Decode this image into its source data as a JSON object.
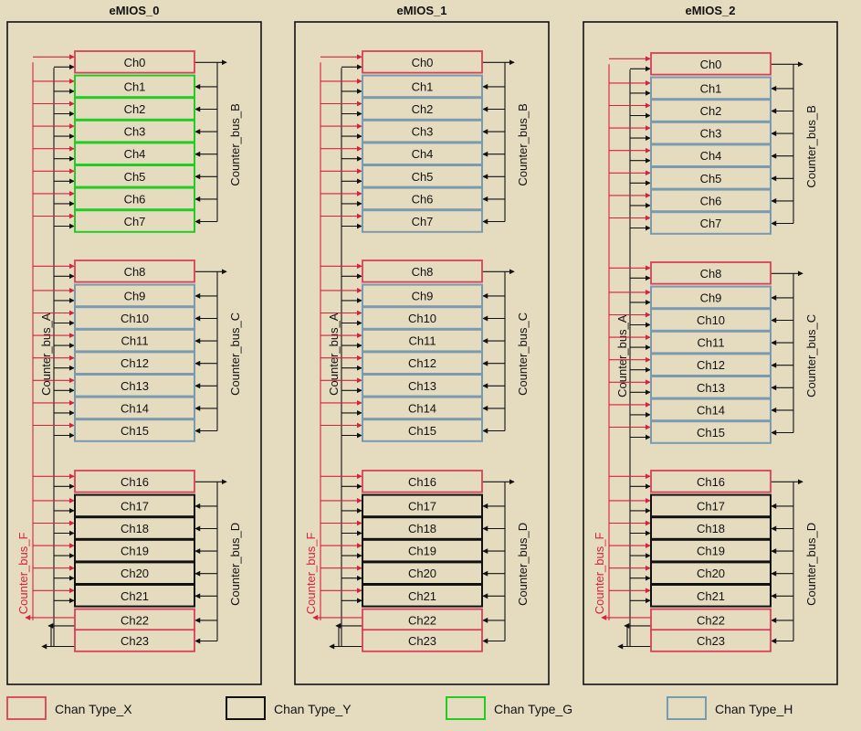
{
  "modules": [
    {
      "title": "eMIOS_0",
      "channels": [
        {
          "label": "Ch0",
          "type": "X"
        },
        {
          "label": "Ch1",
          "type": "G"
        },
        {
          "label": "Ch2",
          "type": "G"
        },
        {
          "label": "Ch3",
          "type": "G"
        },
        {
          "label": "Ch4",
          "type": "G"
        },
        {
          "label": "Ch5",
          "type": "G"
        },
        {
          "label": "Ch6",
          "type": "G"
        },
        {
          "label": "Ch7",
          "type": "G"
        },
        {
          "label": "Ch8",
          "type": "X"
        },
        {
          "label": "Ch9",
          "type": "H"
        },
        {
          "label": "Ch10",
          "type": "H"
        },
        {
          "label": "Ch11",
          "type": "H"
        },
        {
          "label": "Ch12",
          "type": "H"
        },
        {
          "label": "Ch13",
          "type": "H"
        },
        {
          "label": "Ch14",
          "type": "H"
        },
        {
          "label": "Ch15",
          "type": "H"
        },
        {
          "label": "Ch16",
          "type": "X"
        },
        {
          "label": "Ch17",
          "type": "Y"
        },
        {
          "label": "Ch18",
          "type": "Y"
        },
        {
          "label": "Ch19",
          "type": "Y"
        },
        {
          "label": "Ch20",
          "type": "Y"
        },
        {
          "label": "Ch21",
          "type": "Y"
        },
        {
          "label": "Ch22",
          "type": "X"
        },
        {
          "label": "Ch23",
          "type": "X"
        }
      ]
    },
    {
      "title": "eMIOS_1",
      "channels": [
        {
          "label": "Ch0",
          "type": "X"
        },
        {
          "label": "Ch1",
          "type": "H"
        },
        {
          "label": "Ch2",
          "type": "H"
        },
        {
          "label": "Ch3",
          "type": "H"
        },
        {
          "label": "Ch4",
          "type": "H"
        },
        {
          "label": "Ch5",
          "type": "H"
        },
        {
          "label": "Ch6",
          "type": "H"
        },
        {
          "label": "Ch7",
          "type": "H"
        },
        {
          "label": "Ch8",
          "type": "X"
        },
        {
          "label": "Ch9",
          "type": "H"
        },
        {
          "label": "Ch10",
          "type": "H"
        },
        {
          "label": "Ch11",
          "type": "H"
        },
        {
          "label": "Ch12",
          "type": "H"
        },
        {
          "label": "Ch13",
          "type": "H"
        },
        {
          "label": "Ch14",
          "type": "H"
        },
        {
          "label": "Ch15",
          "type": "H"
        },
        {
          "label": "Ch16",
          "type": "X"
        },
        {
          "label": "Ch17",
          "type": "Y"
        },
        {
          "label": "Ch18",
          "type": "Y"
        },
        {
          "label": "Ch19",
          "type": "Y"
        },
        {
          "label": "Ch20",
          "type": "Y"
        },
        {
          "label": "Ch21",
          "type": "Y"
        },
        {
          "label": "Ch22",
          "type": "X"
        },
        {
          "label": "Ch23",
          "type": "X"
        }
      ]
    },
    {
      "title": "eMIOS_2",
      "channels": [
        {
          "label": "Ch0",
          "type": "X"
        },
        {
          "label": "Ch1",
          "type": "H"
        },
        {
          "label": "Ch2",
          "type": "H"
        },
        {
          "label": "Ch3",
          "type": "H"
        },
        {
          "label": "Ch4",
          "type": "H"
        },
        {
          "label": "Ch5",
          "type": "H"
        },
        {
          "label": "Ch6",
          "type": "H"
        },
        {
          "label": "Ch7",
          "type": "H"
        },
        {
          "label": "Ch8",
          "type": "X"
        },
        {
          "label": "Ch9",
          "type": "H"
        },
        {
          "label": "Ch10",
          "type": "H"
        },
        {
          "label": "Ch11",
          "type": "H"
        },
        {
          "label": "Ch12",
          "type": "H"
        },
        {
          "label": "Ch13",
          "type": "H"
        },
        {
          "label": "Ch14",
          "type": "H"
        },
        {
          "label": "Ch15",
          "type": "H"
        },
        {
          "label": "Ch16",
          "type": "X"
        },
        {
          "label": "Ch17",
          "type": "Y"
        },
        {
          "label": "Ch18",
          "type": "Y"
        },
        {
          "label": "Ch19",
          "type": "Y"
        },
        {
          "label": "Ch20",
          "type": "Y"
        },
        {
          "label": "Ch21",
          "type": "Y"
        },
        {
          "label": "Ch22",
          "type": "X"
        },
        {
          "label": "Ch23",
          "type": "X"
        }
      ]
    }
  ],
  "buses": {
    "a": "Counter_bus_A",
    "b": "Counter_bus_B",
    "c": "Counter_bus_C",
    "d": "Counter_bus_D",
    "f": "Counter_bus_F"
  },
  "legend": [
    {
      "type": "X",
      "label": "Chan Type_X"
    },
    {
      "type": "Y",
      "label": "Chan Type_Y"
    },
    {
      "type": "G",
      "label": "Chan Type_G"
    },
    {
      "type": "H",
      "label": "Chan Type_H"
    }
  ],
  "colors": {
    "background": "#e5dcc0",
    "cell_fill": "#e5dcc0",
    "type_X": "#d8405a",
    "type_Y": "#111111",
    "type_G": "#22cc22",
    "type_H": "#7a9ab0",
    "bus_F": "#d8203f",
    "wire": "#111111"
  }
}
